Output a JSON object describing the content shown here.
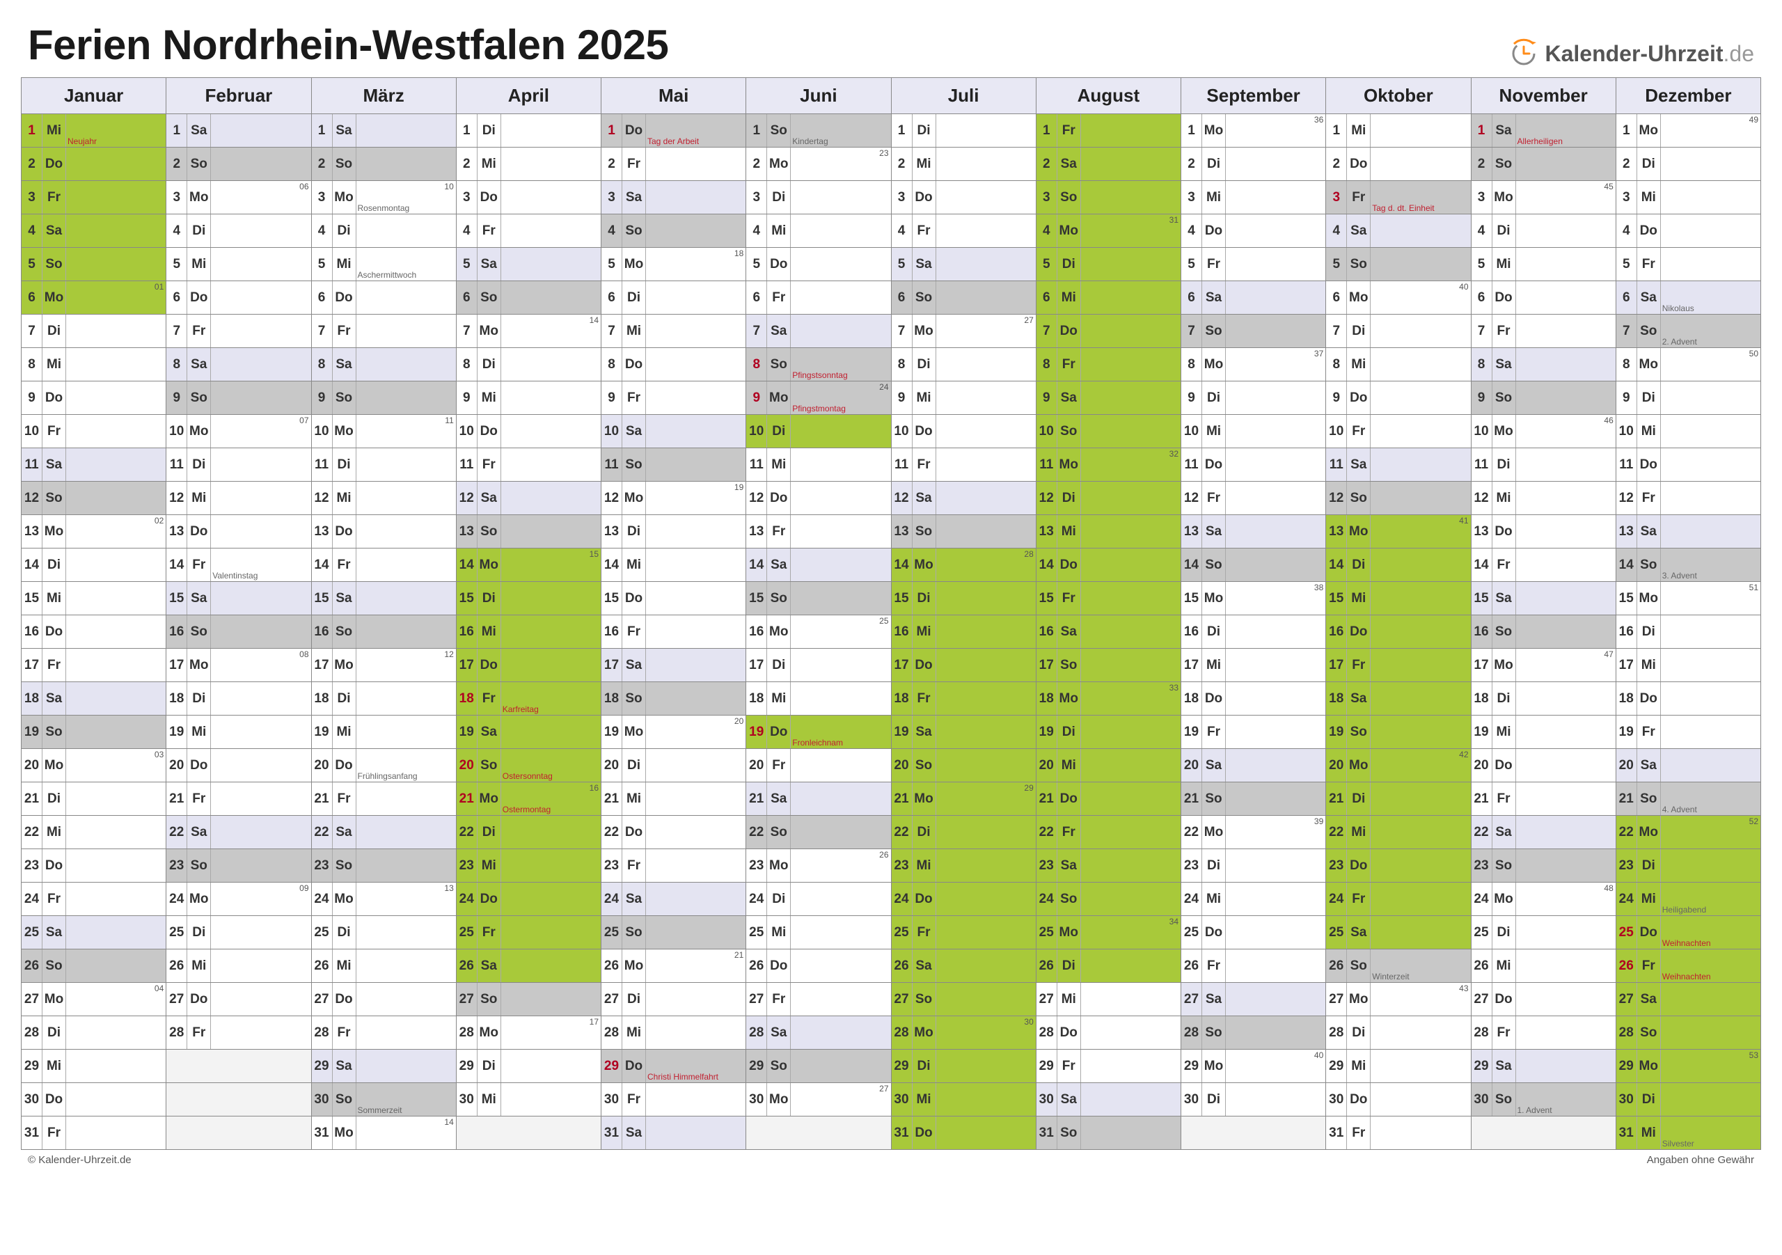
{
  "title": "Ferien Nordrhein-Westfalen 2025",
  "logo": {
    "text": "Kalender-Uhrzeit",
    "suffix": ".de"
  },
  "footer_left": "© Kalender-Uhrzeit.de",
  "footer_right": "Angaben ohne Gewähr",
  "colors": {
    "header_bg": "#e8e8f4",
    "weekend_sat": "#e4e4f2",
    "weekend_sun": "#c8c8c8",
    "ferien": "#a8c93a",
    "holiday_text": "#b00020",
    "note_red": "#c02030"
  },
  "months": [
    "Januar",
    "Februar",
    "März",
    "April",
    "Mai",
    "Juni",
    "Juli",
    "August",
    "September",
    "Oktober",
    "November",
    "Dezember"
  ],
  "dow": [
    "Mo",
    "Di",
    "Mi",
    "Do",
    "Fr",
    "Sa",
    "So"
  ],
  "days_in_month": [
    31,
    28,
    31,
    30,
    31,
    30,
    31,
    31,
    30,
    31,
    30,
    31
  ],
  "start_dow": [
    2,
    5,
    5,
    1,
    3,
    6,
    1,
    4,
    0,
    2,
    5,
    0
  ],
  "week_num_start": [
    1,
    6,
    10,
    14,
    18,
    23,
    27,
    31,
    36,
    40,
    45,
    49
  ],
  "ferien_ranges": [
    [
      1,
      1,
      6
    ],
    [
      4,
      14,
      26
    ],
    [
      6,
      10,
      10
    ],
    [
      6,
      19,
      19
    ],
    [
      7,
      14,
      31
    ],
    [
      8,
      1,
      26
    ],
    [
      10,
      13,
      25
    ],
    [
      12,
      22,
      31
    ]
  ],
  "holidays": {
    "1-1": "Neujahr",
    "4-18": "Karfreitag",
    "4-20": "Ostersonntag",
    "4-21": "Ostermontag",
    "5-1": "Tag der Arbeit",
    "5-29": "Christi Himmelfahrt",
    "6-8": "Pfingstsonntag",
    "6-9": "Pfingstmontag",
    "6-19": "Fronleichnam",
    "10-3": "Tag d. dt. Einheit",
    "11-1": "Allerheiligen",
    "12-25": "Weihnachten",
    "12-26": "Weihnachten"
  },
  "notes": {
    "2-14": "Valentinstag",
    "3-3": "Rosenmontag",
    "3-5": "Aschermittwoch",
    "3-20": "Frühlingsanfang",
    "3-30": "Sommerzeit",
    "6-1": "Kindertag",
    "10-26": "Winterzeit",
    "11-30": "1. Advent",
    "12-6": "Nikolaus",
    "12-7": "2. Advent",
    "12-14": "3. Advent",
    "12-21": "4. Advent",
    "12-24": "Heiligabend",
    "12-31": "Silvester"
  }
}
